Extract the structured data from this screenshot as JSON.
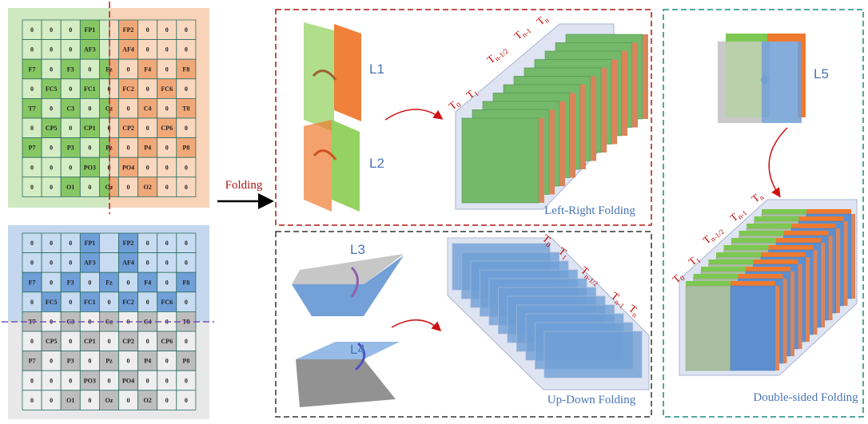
{
  "grids": [
    {
      "rows": [
        [
          "0",
          "0",
          "0",
          "FP1",
          null,
          "FP2",
          "0",
          "0",
          "0"
        ],
        [
          "0",
          "0",
          "0",
          "AF3",
          null,
          "AF4",
          "0",
          "0",
          "0"
        ],
        [
          "F7",
          "0",
          "F3",
          "0",
          "Fz",
          "0",
          "F4",
          "0",
          "F8"
        ],
        [
          "0",
          "FC5",
          "0",
          "FC1",
          "0",
          "FC2",
          "0",
          "FC6",
          "0"
        ],
        [
          "T7",
          "0",
          "C3",
          "0",
          "Cz",
          "0",
          "C4",
          "0",
          "T8"
        ],
        [
          "0",
          "CP5",
          "0",
          "CP1",
          "0",
          "CP2",
          "0",
          "CP6",
          "0"
        ],
        [
          "P7",
          "0",
          "P3",
          "0",
          "Pz",
          "0",
          "P4",
          "0",
          "P8"
        ],
        [
          "0",
          "0",
          "0",
          "PO3",
          "0",
          "PO4",
          "0",
          "0",
          "0"
        ],
        [
          "0",
          "0",
          "O1",
          "0",
          "Oz",
          "0",
          "O2",
          "0",
          "0"
        ]
      ]
    },
    {
      "rows": [
        [
          "0",
          "0",
          "0",
          "FP1",
          null,
          "FP2",
          "0",
          "0",
          "0"
        ],
        [
          "0",
          "0",
          "0",
          "AF3",
          null,
          "AF4",
          "0",
          "0",
          "0"
        ],
        [
          "F7",
          "0",
          "F3",
          "0",
          "Fz",
          "0",
          "F4",
          "0",
          "F8"
        ],
        [
          "0",
          "FC5",
          "0",
          "FC1",
          "0",
          "FC2",
          "0",
          "FC6",
          "0"
        ],
        [
          "T7",
          "0",
          "C3",
          "0",
          "Cz",
          "0",
          "C4",
          "0",
          "T8"
        ],
        [
          "0",
          "CP5",
          "0",
          "CP1",
          "0",
          "CP2",
          "0",
          "CP6",
          "0"
        ],
        [
          "P7",
          "0",
          "P3",
          "0",
          "Pz",
          "0",
          "P4",
          "0",
          "P8"
        ],
        [
          "0",
          "0",
          "0",
          "PO3",
          "0",
          "PO4",
          "0",
          "0",
          "0"
        ],
        [
          "0",
          "0",
          "O1",
          "0",
          "Oz",
          "0",
          "O2",
          "0",
          "0"
        ]
      ]
    }
  ],
  "folding_label": "Folding",
  "panels": [
    {
      "caption": "Left-Right Folding",
      "layers": [
        "L1",
        "L2"
      ],
      "time_labels": [
        {
          "main": "T",
          "sub": "0"
        },
        {
          "main": "T",
          "sub": "1"
        },
        {
          "main": "T",
          "sub": "n-1/2"
        },
        {
          "main": "T",
          "sub": "n-1"
        },
        {
          "main": "T",
          "sub": "n"
        }
      ]
    },
    {
      "caption": "Up-Down Folding",
      "layers": [
        "L3",
        "L4"
      ],
      "time_labels": [
        {
          "main": "T",
          "sub": "0"
        },
        {
          "main": "T",
          "sub": "1"
        },
        {
          "main": "T",
          "sub": "n-1/2"
        },
        {
          "main": "T",
          "sub": "n-1"
        },
        {
          "main": "T",
          "sub": "n"
        }
      ]
    },
    {
      "caption": "Double-sided Folding",
      "layers": [
        "L5"
      ],
      "time_labels": [
        {
          "main": "T",
          "sub": "0"
        },
        {
          "main": "T",
          "sub": "1"
        },
        {
          "main": "T",
          "sub": "n-1/2"
        },
        {
          "main": "T",
          "sub": "n-1"
        },
        {
          "main": "T",
          "sub": "n"
        }
      ]
    }
  ]
}
